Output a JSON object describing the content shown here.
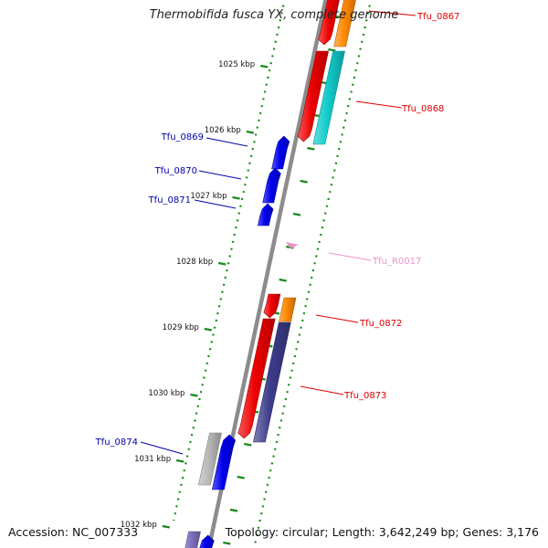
{
  "title": "Thermobifida fusca YX, complete genome",
  "footer": {
    "accession": "Accession: NC_007333",
    "topology": "Topology: circular; Length: 3,642,249 bp; Genes: 3,176"
  },
  "colors": {
    "backbone": "#8c8c8c",
    "tick": "#1a8a1a",
    "forward_label": "#0000aa",
    "reverse_label": "#dd0000",
    "rna_label": "#e892c8",
    "red": "#ee0000",
    "orange": "#ff8800",
    "cyan": "#11cccc",
    "blue": "#0000ee",
    "navy": "#3c3c8c",
    "grey": "#b8b8b8",
    "lavender": "#8070c0"
  },
  "kbp_labels": [
    "1025 kbp",
    "1026 kbp",
    "1027 kbp",
    "1028 kbp",
    "1029 kbp",
    "1030 kbp",
    "1031 kbp",
    "1032 kbp"
  ],
  "gene_labels": [
    {
      "id": "Tfu_0867",
      "strand": "reverse"
    },
    {
      "id": "Tfu_0868",
      "strand": "reverse"
    },
    {
      "id": "Tfu_0869",
      "strand": "forward"
    },
    {
      "id": "Tfu_0870",
      "strand": "forward"
    },
    {
      "id": "Tfu_0871",
      "strand": "forward"
    },
    {
      "id": "Tfu_R0017",
      "strand": "rna"
    },
    {
      "id": "Tfu_0872",
      "strand": "reverse"
    },
    {
      "id": "Tfu_0873",
      "strand": "reverse"
    },
    {
      "id": "Tfu_0874",
      "strand": "forward"
    }
  ]
}
